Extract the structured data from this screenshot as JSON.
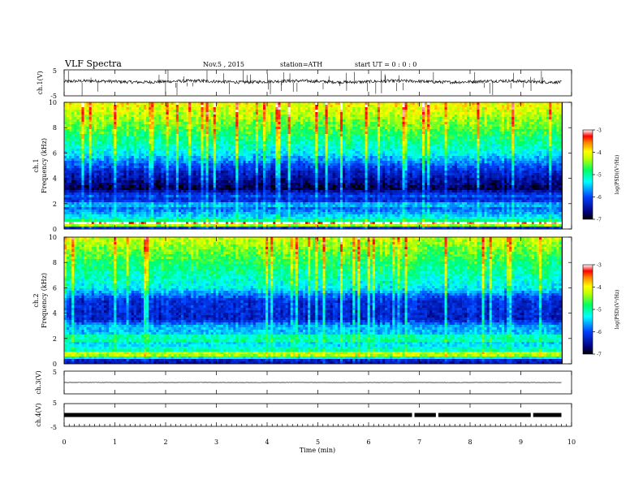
{
  "header": {
    "title": "VLF Spectra",
    "date": "Nov.5  , 2015",
    "station": "station=ATH",
    "start": "start  UT =   0 : 0 : 0"
  },
  "chart_data": [
    {
      "type": "line",
      "name": "ch1-waveform",
      "ylabel": "ch.1(V)",
      "ylim": [
        -5,
        5
      ],
      "yticks": [
        "5",
        "-5"
      ],
      "xlim": [
        0,
        10
      ],
      "x_extent": [
        0,
        9.8
      ],
      "baseline": 0.5,
      "noise": 0.6,
      "spikes": 60
    },
    {
      "type": "heatmap",
      "name": "ch1-spectrogram",
      "ylabel": "ch.1\nFrequency (kHz)",
      "ylim": [
        0,
        10
      ],
      "yticks": [
        "0",
        "2",
        "4",
        "6",
        "8",
        "10"
      ],
      "xlim": [
        0,
        10
      ],
      "x_extent": [
        0,
        9.8
      ],
      "zlim": [
        -7,
        -3
      ],
      "colorbar_label": "log(PSD)(V²/Hz)",
      "colorbar_ticks": [
        "-3",
        "-4",
        "-5",
        "-6",
        "-7"
      ],
      "profile": [
        {
          "f": 10.0,
          "v": -4.0
        },
        {
          "f": 8.0,
          "v": -4.6
        },
        {
          "f": 6.0,
          "v": -5.3
        },
        {
          "f": 4.5,
          "v": -6.3
        },
        {
          "f": 3.0,
          "v": -6.9
        },
        {
          "f": 2.5,
          "v": -6.3
        },
        {
          "f": 1.5,
          "v": -5.8
        },
        {
          "f": 0.7,
          "v": -5.2
        },
        {
          "f": 0.5,
          "v": -3.3
        },
        {
          "f": 0.0,
          "v": -6.8
        }
      ]
    },
    {
      "type": "heatmap",
      "name": "ch2-spectrogram",
      "ylabel": "ch.2\nFrequency (kHz)",
      "ylim": [
        0,
        10
      ],
      "yticks": [
        "0",
        "2",
        "4",
        "6",
        "8",
        "10"
      ],
      "xlim": [
        0,
        10
      ],
      "x_extent": [
        0,
        9.8
      ],
      "zlim": [
        -7,
        -3
      ],
      "colorbar_label": "log(PSD)(V²/Hz)",
      "colorbar_ticks": [
        "-3",
        "-4",
        "-5",
        "-6",
        "-7"
      ],
      "profile": [
        {
          "f": 10.0,
          "v": -4.2
        },
        {
          "f": 8.0,
          "v": -4.8
        },
        {
          "f": 6.0,
          "v": -5.3
        },
        {
          "f": 5.0,
          "v": -6.2
        },
        {
          "f": 3.5,
          "v": -6.3
        },
        {
          "f": 3.0,
          "v": -5.6
        },
        {
          "f": 1.5,
          "v": -5.4
        },
        {
          "f": 1.0,
          "v": -5.0
        },
        {
          "f": 0.9,
          "v": -4.2
        },
        {
          "f": 0.5,
          "v": -5.2
        },
        {
          "f": 0.2,
          "v": -6.8
        },
        {
          "f": 0.0,
          "v": -6.9
        }
      ]
    },
    {
      "type": "line",
      "name": "ch3-waveform",
      "ylabel": "ch.3(V)",
      "ylim": [
        -5,
        5
      ],
      "yticks": [
        "5"
      ],
      "xlim": [
        0,
        10
      ],
      "x_extent": [
        0,
        9.8
      ],
      "baseline": 0.0,
      "noise": 0.05,
      "spikes": 0
    },
    {
      "type": "line",
      "name": "ch4-waveform",
      "ylabel": "ch.4(V)",
      "ylim": [
        -5,
        5
      ],
      "yticks": [
        "5",
        "-5"
      ],
      "xlim": [
        0,
        10
      ],
      "x_extent": [
        0,
        9.8
      ],
      "baseline": 0.0,
      "noise": 0.3,
      "gaps": [
        6.88,
        7.35,
        9.22
      ]
    }
  ],
  "xaxis": {
    "label": "Time (min)",
    "ticks": [
      "0",
      "1",
      "2",
      "3",
      "4",
      "5",
      "6",
      "7",
      "8",
      "9",
      "10"
    ]
  }
}
